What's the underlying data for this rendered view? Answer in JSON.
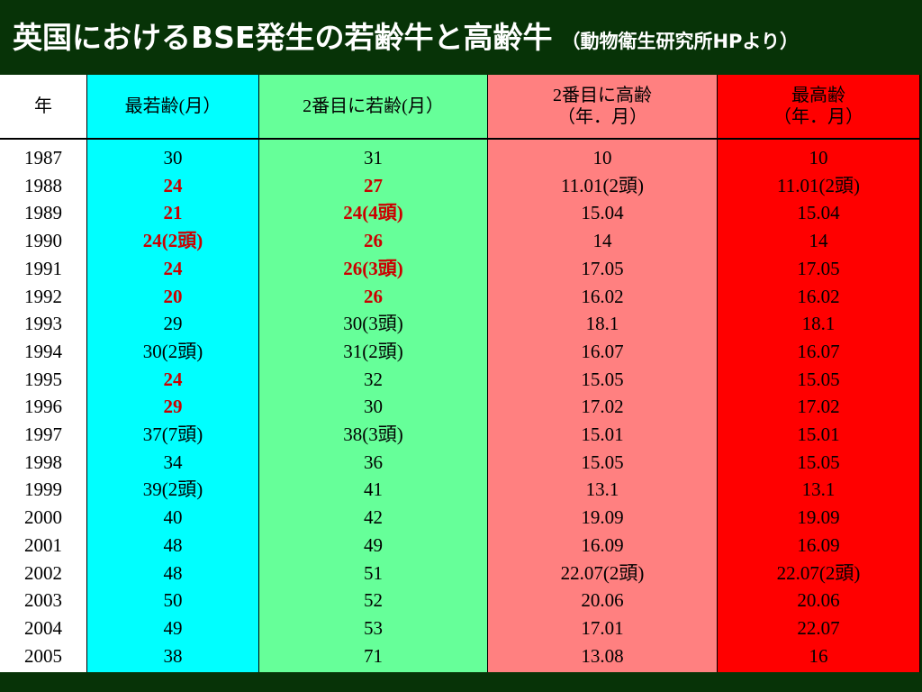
{
  "header": {
    "title": "英国におけるBSE発生の若齢牛と高齢牛",
    "subtitle": "（動物衛生研究所HPより）"
  },
  "table": {
    "columns": [
      {
        "header": "年",
        "color": "#ffffff",
        "highlight_rows": []
      },
      {
        "header": "最若齢(月）",
        "color": "#00ffff",
        "highlight_rows": [
          1,
          2,
          3,
          4,
          5,
          8,
          9
        ]
      },
      {
        "header": "2番目に若齢(月）",
        "color": "#66ff99",
        "highlight_rows": [
          1,
          2,
          3,
          4,
          5
        ]
      },
      {
        "header": "2番目に高齢\n（年．月）",
        "color": "#ff8080",
        "highlight_rows": []
      },
      {
        "header": "最高齢\n（年．月）",
        "color": "#ff0000",
        "highlight_rows": []
      }
    ],
    "highlight_color": "#cc0000",
    "rows": [
      [
        "1987",
        "30",
        "31",
        "10",
        "10"
      ],
      [
        "1988",
        "24",
        "27",
        "11.01(2頭)",
        "11.01(2頭)"
      ],
      [
        "1989",
        "21",
        "24(4頭)",
        "15.04",
        "15.04"
      ],
      [
        "1990",
        "24(2頭)",
        "26",
        "14",
        "14"
      ],
      [
        "1991",
        "24",
        "26(3頭)",
        "17.05",
        "17.05"
      ],
      [
        "1992",
        "20",
        "26",
        "16.02",
        "16.02"
      ],
      [
        "1993",
        "29",
        "30(3頭)",
        "18.1",
        "18.1"
      ],
      [
        "1994",
        "30(2頭)",
        "31(2頭)",
        "16.07",
        "16.07"
      ],
      [
        "1995",
        "24",
        "32",
        "15.05",
        "15.05"
      ],
      [
        "1996",
        "29",
        "30",
        "17.02",
        "17.02"
      ],
      [
        "1997",
        "37(7頭)",
        "38(3頭)",
        "15.01",
        "15.01"
      ],
      [
        "1998",
        "34",
        "36",
        "15.05",
        "15.05"
      ],
      [
        "1999",
        "39(2頭)",
        "41",
        "13.1",
        "13.1"
      ],
      [
        "2000",
        "40",
        "42",
        "19.09",
        "19.09"
      ],
      [
        "2001",
        "48",
        "49",
        "16.09",
        "16.09"
      ],
      [
        "2002",
        "48",
        "51",
        "22.07(2頭)",
        "22.07(2頭)"
      ],
      [
        "2003",
        "50",
        "52",
        "20.06",
        "20.06"
      ],
      [
        "2004",
        "49",
        "53",
        "17.01",
        "22.07"
      ],
      [
        "2005",
        "38",
        "71",
        "13.08",
        "16"
      ]
    ]
  }
}
